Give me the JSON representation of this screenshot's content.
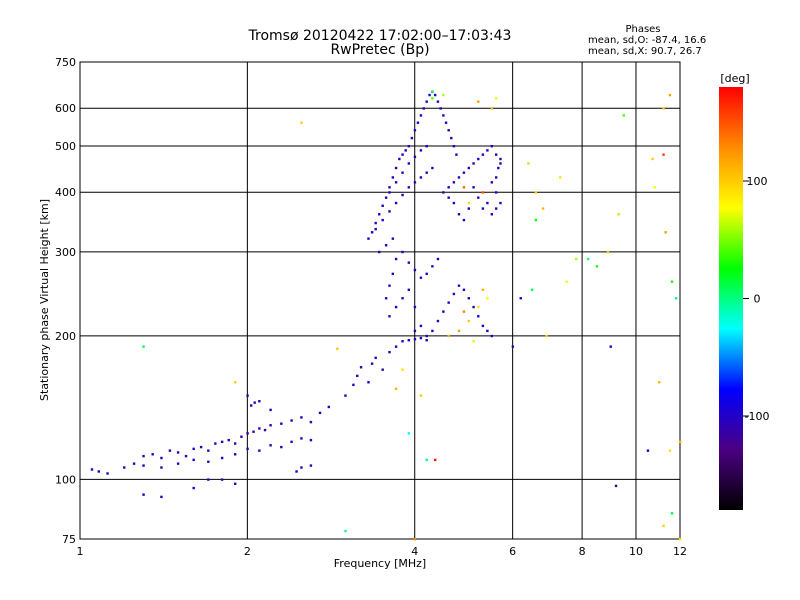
{
  "chart_data": {
    "type": "scatter",
    "title": "Tromsø 20120422 17:02:00–17:03:43",
    "subtitle": "RwPretec (Bp)",
    "xlabel": "Frequency [MHz]",
    "ylabel": "Stationary phase Virtual Height [km]",
    "x_scale": "log",
    "y_scale": "log",
    "xlim": [
      1,
      12
    ],
    "ylim": [
      75,
      750
    ],
    "x_ticks": [
      1,
      2,
      4,
      6,
      8,
      10,
      12
    ],
    "y_ticks": [
      75,
      100,
      200,
      300,
      400,
      500,
      600,
      750
    ],
    "grid": true,
    "phase_stats": {
      "heading": "Phases",
      "line_o": "mean, sd,O: -87.4, 16.6",
      "line_x": "mean, sd,X:  90.7, 26.7"
    },
    "colorbar": {
      "label": "[deg]",
      "ticks": [
        100,
        0,
        -100
      ],
      "range": [
        -180,
        180
      ],
      "colors": [
        "#000000",
        "#4b0082",
        "#0000ff",
        "#00ffff",
        "#00ff00",
        "#ffff00",
        "#ff8c00",
        "#ff0000"
      ]
    },
    "series": [
      {
        "points": [
          [
            1.05,
            105,
            -105
          ],
          [
            1.08,
            104,
            -100
          ],
          [
            1.12,
            103,
            -108
          ],
          [
            1.2,
            106,
            -100
          ],
          [
            1.25,
            108,
            -110
          ],
          [
            1.3,
            112,
            -105
          ],
          [
            1.35,
            113,
            -100
          ],
          [
            1.4,
            111,
            -112
          ],
          [
            1.45,
            115,
            -105
          ],
          [
            1.5,
            114,
            -100
          ],
          [
            1.55,
            112,
            -108
          ],
          [
            1.6,
            116,
            -100
          ],
          [
            1.65,
            117,
            -110
          ],
          [
            1.7,
            115,
            -105
          ],
          [
            1.75,
            119,
            -100
          ],
          [
            1.8,
            120,
            -112
          ],
          [
            1.85,
            121,
            -105
          ],
          [
            1.9,
            119,
            -108
          ],
          [
            1.95,
            123,
            -100
          ],
          [
            2.0,
            125,
            -110
          ],
          [
            2.05,
            126,
            -105
          ],
          [
            2.1,
            128,
            -100
          ],
          [
            2.15,
            127,
            -112
          ],
          [
            2.2,
            130,
            -105
          ],
          [
            2.3,
            131,
            -100
          ],
          [
            2.4,
            133,
            -108
          ],
          [
            2.5,
            135,
            -100
          ],
          [
            2.6,
            132,
            -110
          ],
          [
            2.7,
            138,
            -105
          ],
          [
            2.8,
            142,
            -100
          ],
          [
            1.3,
            107,
            -100
          ],
          [
            1.4,
            106,
            -108
          ],
          [
            1.5,
            108,
            -105
          ],
          [
            1.6,
            110,
            -100
          ],
          [
            1.7,
            109,
            -112
          ],
          [
            1.8,
            111,
            -105
          ],
          [
            1.9,
            113,
            -100
          ],
          [
            2.0,
            116,
            -108
          ],
          [
            2.1,
            115,
            -100
          ],
          [
            2.2,
            118,
            -110
          ],
          [
            2.3,
            117,
            -105
          ],
          [
            2.4,
            120,
            -100
          ],
          [
            2.5,
            122,
            -108
          ],
          [
            2.6,
            121,
            -100
          ],
          [
            1.3,
            93,
            -100
          ],
          [
            1.4,
            92,
            -110
          ],
          [
            1.6,
            96,
            -105
          ],
          [
            1.7,
            100,
            -100
          ],
          [
            1.8,
            100,
            -108
          ],
          [
            1.9,
            98,
            -100
          ],
          [
            2.03,
            143,
            -105
          ],
          [
            2.06,
            145,
            -110
          ],
          [
            2.1,
            146,
            -100
          ],
          [
            2.0,
            150,
            -108
          ],
          [
            2.2,
            140,
            -105
          ],
          [
            2.5,
            106,
            -100
          ],
          [
            2.6,
            107,
            -108
          ],
          [
            2.45,
            104,
            -100
          ],
          [
            3.0,
            150,
            -105
          ],
          [
            3.1,
            158,
            -100
          ],
          [
            3.15,
            165,
            -110
          ],
          [
            3.2,
            172,
            -105
          ],
          [
            3.3,
            160,
            -100
          ],
          [
            3.35,
            175,
            -108
          ],
          [
            3.4,
            180,
            -100
          ],
          [
            3.5,
            170,
            -112
          ],
          [
            3.6,
            185,
            -105
          ],
          [
            3.7,
            190,
            -100
          ],
          [
            3.8,
            195,
            -108
          ],
          [
            3.9,
            196,
            -100
          ],
          [
            4.0,
            197,
            -110
          ]
        ]
      },
      {
        "points": [
          [
            3.3,
            320,
            -105
          ],
          [
            3.35,
            330,
            -100
          ],
          [
            3.4,
            345,
            -110
          ],
          [
            3.45,
            360,
            -105
          ],
          [
            3.5,
            375,
            -100
          ],
          [
            3.55,
            390,
            -108
          ],
          [
            3.6,
            410,
            -105
          ],
          [
            3.65,
            430,
            -100
          ],
          [
            3.7,
            450,
            -110
          ],
          [
            3.75,
            470,
            -105
          ],
          [
            3.8,
            480,
            -100
          ],
          [
            3.85,
            490,
            -108
          ],
          [
            3.9,
            500,
            -105
          ],
          [
            3.95,
            520,
            -100
          ],
          [
            4.0,
            540,
            -110
          ],
          [
            4.05,
            560,
            -105
          ],
          [
            4.1,
            580,
            -100
          ],
          [
            4.15,
            600,
            -108
          ],
          [
            4.2,
            620,
            -105
          ],
          [
            4.25,
            640,
            -100
          ],
          [
            4.3,
            650,
            -110
          ],
          [
            4.35,
            640,
            -105
          ],
          [
            4.4,
            620,
            -100
          ],
          [
            4.45,
            600,
            -108
          ],
          [
            4.5,
            580,
            -105
          ],
          [
            4.55,
            560,
            -100
          ],
          [
            4.6,
            540,
            -110
          ],
          [
            4.65,
            520,
            -105
          ],
          [
            4.7,
            500,
            -100
          ],
          [
            4.75,
            480,
            -108
          ],
          [
            3.4,
            335,
            -105
          ],
          [
            3.5,
            350,
            -100
          ],
          [
            3.6,
            365,
            -108
          ],
          [
            3.7,
            380,
            -105
          ],
          [
            3.8,
            395,
            -100
          ],
          [
            3.9,
            410,
            -110
          ],
          [
            4.0,
            420,
            -105
          ],
          [
            4.1,
            430,
            -100
          ],
          [
            4.2,
            440,
            -108
          ],
          [
            4.3,
            450,
            -105
          ],
          [
            3.6,
            400,
            -100
          ],
          [
            3.7,
            420,
            -108
          ],
          [
            3.8,
            440,
            -105
          ],
          [
            3.9,
            460,
            -100
          ],
          [
            4.0,
            475,
            -110
          ],
          [
            4.1,
            490,
            -105
          ],
          [
            4.2,
            500,
            -100
          ],
          [
            3.45,
            300,
            -105
          ],
          [
            3.55,
            310,
            -100
          ],
          [
            3.65,
            320,
            -108
          ],
          [
            3.7,
            290,
            -105
          ],
          [
            3.8,
            300,
            -100
          ],
          [
            3.9,
            285,
            -110
          ],
          [
            4.0,
            275,
            -105
          ],
          [
            4.1,
            265,
            -100
          ],
          [
            4.2,
            270,
            -108
          ],
          [
            4.3,
            280,
            -105
          ],
          [
            4.4,
            290,
            -100
          ],
          [
            3.6,
            220,
            -105
          ],
          [
            3.7,
            230,
            -100
          ],
          [
            3.8,
            240,
            -110
          ],
          [
            3.9,
            250,
            -105
          ],
          [
            4.0,
            230,
            -100
          ],
          [
            4.1,
            210,
            -108
          ],
          [
            4.2,
            200,
            -105
          ],
          [
            4.3,
            205,
            -100
          ],
          [
            4.4,
            215,
            -110
          ],
          [
            4.5,
            225,
            -105
          ],
          [
            4.6,
            235,
            -100
          ],
          [
            4.7,
            245,
            -108
          ],
          [
            4.8,
            255,
            -105
          ],
          [
            4.9,
            250,
            -100
          ],
          [
            5.0,
            240,
            -110
          ],
          [
            5.1,
            230,
            -105
          ],
          [
            5.2,
            220,
            -100
          ],
          [
            5.3,
            210,
            -108
          ],
          [
            5.4,
            205,
            -105
          ],
          [
            5.5,
            200,
            -100
          ],
          [
            3.55,
            240,
            -105
          ],
          [
            3.6,
            255,
            -100
          ],
          [
            3.65,
            270,
            -108
          ],
          [
            4.0,
            205,
            -105
          ],
          [
            4.1,
            198,
            -100
          ],
          [
            4.2,
            196,
            -110
          ]
        ]
      },
      {
        "points": [
          [
            4.5,
            400,
            -105
          ],
          [
            4.6,
            410,
            -100
          ],
          [
            4.7,
            420,
            -108
          ],
          [
            4.8,
            430,
            -105
          ],
          [
            4.9,
            440,
            -100
          ],
          [
            5.0,
            450,
            -110
          ],
          [
            5.1,
            460,
            -105
          ],
          [
            5.2,
            470,
            -100
          ],
          [
            5.3,
            480,
            -108
          ],
          [
            5.4,
            490,
            -105
          ],
          [
            5.5,
            500,
            -100
          ],
          [
            5.6,
            480,
            -110
          ],
          [
            5.7,
            460,
            -105
          ],
          [
            5.5,
            420,
            -100
          ],
          [
            5.6,
            400,
            -108
          ],
          [
            5.7,
            380,
            -105
          ],
          [
            5.4,
            380,
            -100
          ],
          [
            5.3,
            370,
            -110
          ],
          [
            5.2,
            390,
            -105
          ],
          [
            5.1,
            410,
            -100
          ],
          [
            4.8,
            360,
            -105
          ],
          [
            4.9,
            350,
            -100
          ],
          [
            5.0,
            370,
            -108
          ],
          [
            4.7,
            380,
            -105
          ],
          [
            4.6,
            390,
            -100
          ],
          [
            5.6,
            430,
            -105
          ],
          [
            5.65,
            450,
            -100
          ],
          [
            5.7,
            470,
            -108
          ],
          [
            5.5,
            360,
            -105
          ],
          [
            5.6,
            370,
            -100
          ]
        ]
      },
      {
        "points": [
          [
            4.3,
            650,
            10
          ],
          [
            4.5,
            640,
            60
          ],
          [
            5.2,
            620,
            120
          ],
          [
            5.5,
            600,
            110
          ],
          [
            5.6,
            630,
            80
          ],
          [
            4.9,
            410,
            140
          ],
          [
            5.0,
            380,
            90
          ],
          [
            5.3,
            400,
            150
          ],
          [
            4.6,
            200,
            110
          ],
          [
            4.8,
            205,
            120
          ],
          [
            5.0,
            215,
            100
          ],
          [
            5.2,
            230,
            90
          ],
          [
            5.4,
            240,
            80
          ],
          [
            5.3,
            250,
            110
          ],
          [
            4.9,
            225,
            130
          ],
          [
            5.1,
            195,
            70
          ],
          [
            2.5,
            560,
            100
          ],
          [
            1.9,
            160,
            100
          ],
          [
            1.3,
            190,
            10
          ],
          [
            6.6,
            400,
            100
          ],
          [
            6.8,
            370,
            110
          ],
          [
            7.3,
            430,
            90
          ],
          [
            8.2,
            290,
            0
          ],
          [
            8.5,
            280,
            30
          ],
          [
            8.9,
            300,
            100
          ],
          [
            9.3,
            360,
            60
          ],
          [
            11.2,
            600,
            100
          ],
          [
            11.5,
            640,
            120
          ],
          [
            11.2,
            480,
            160
          ],
          [
            4.3,
            630,
            40
          ],
          [
            6.5,
            250,
            10
          ],
          [
            6.9,
            200,
            100
          ],
          [
            7.8,
            290,
            60
          ],
          [
            11.0,
            160,
            110
          ],
          [
            11.6,
            260,
            30
          ],
          [
            11.8,
            240,
            0
          ],
          [
            10.8,
            410,
            80
          ],
          [
            10.7,
            470,
            100
          ],
          [
            11.3,
            330,
            120
          ],
          [
            12.0,
            120,
            110
          ],
          [
            11.5,
            115,
            90
          ],
          [
            11.2,
            80,
            100
          ],
          [
            11.6,
            85,
            10
          ],
          [
            12.0,
            75,
            90
          ],
          [
            9.5,
            580,
            40
          ],
          [
            6.4,
            460,
            60
          ],
          [
            6.6,
            350,
            20
          ],
          [
            7.5,
            260,
            80
          ],
          [
            4.2,
            110,
            0
          ],
          [
            3.9,
            125,
            -20
          ],
          [
            3.0,
            78,
            -10
          ],
          [
            2.9,
            188,
            100
          ],
          [
            3.7,
            155,
            110
          ],
          [
            3.8,
            170,
            90
          ],
          [
            4.0,
            75,
            130
          ],
          [
            4.1,
            150,
            100
          ],
          [
            4.35,
            110,
            175
          ],
          [
            9.2,
            97,
            -120
          ],
          [
            10.5,
            115,
            -100
          ],
          [
            9.0,
            190,
            -90
          ],
          [
            6.0,
            190,
            -110
          ],
          [
            6.2,
            240,
            -100
          ]
        ]
      }
    ]
  }
}
